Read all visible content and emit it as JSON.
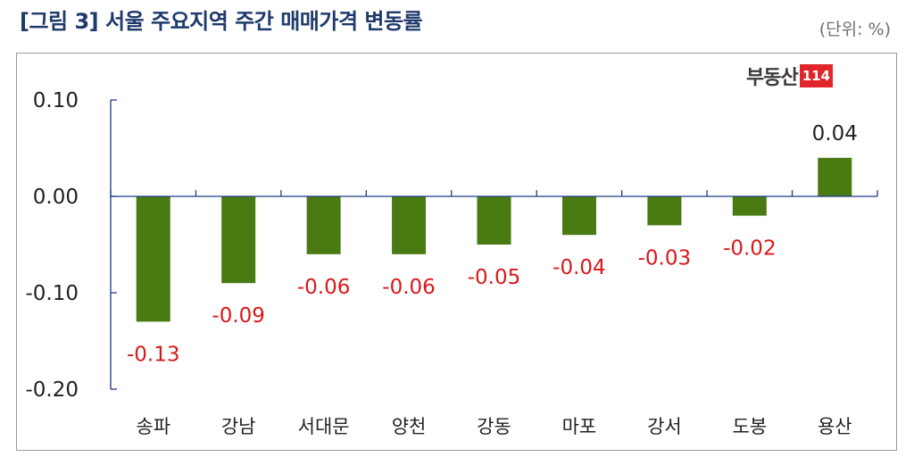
{
  "header": {
    "title": "[그림 3] 서울 주요지역 주간 매매가격 변동률",
    "unit": "(단위: %)"
  },
  "logo": {
    "text": "부동산",
    "badge": "114"
  },
  "colors": {
    "bar": "#4a7a12",
    "negative_label": "#d7191c",
    "positive_label": "#222222",
    "axis": "#1f3a8a"
  },
  "chart_data": {
    "type": "bar",
    "categories": [
      "송파",
      "강남",
      "서대문",
      "양천",
      "강동",
      "마포",
      "강서",
      "도봉",
      "용산"
    ],
    "values": [
      -0.13,
      -0.09,
      -0.06,
      -0.06,
      -0.05,
      -0.04,
      -0.03,
      -0.02,
      0.04
    ],
    "data_labels": [
      "-0.13",
      "-0.09",
      "-0.06",
      "-0.06",
      "-0.05",
      "-0.04",
      "-0.03",
      "-0.02",
      "0.04"
    ],
    "yticks": [
      0.1,
      0.0,
      -0.1,
      -0.2
    ],
    "ytick_labels": [
      "0.10",
      "0.00",
      "-0.10",
      "-0.20"
    ],
    "ylim": [
      -0.2,
      0.1
    ],
    "grid": false,
    "legend": "none",
    "title": "",
    "xlabel": "",
    "ylabel": ""
  }
}
